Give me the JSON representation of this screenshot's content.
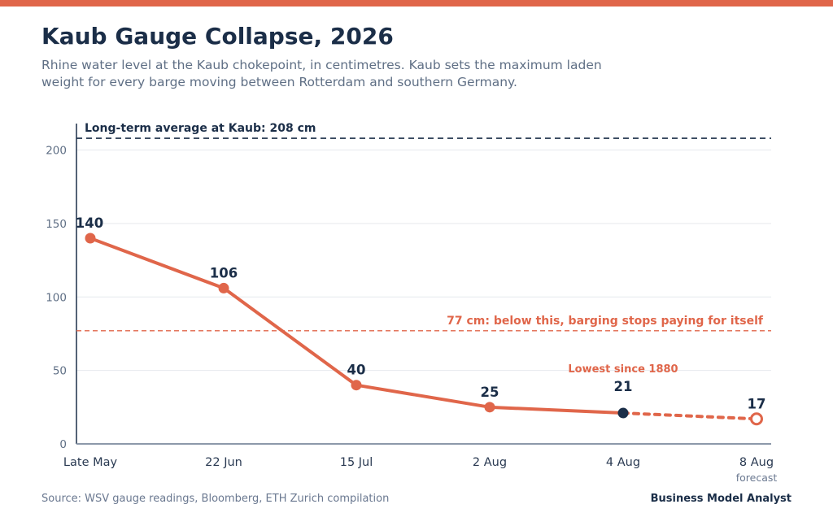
{
  "header": {
    "title": "Kaub Gauge Collapse, 2026",
    "subtitle": "Rhine water level at the Kaub chokepoint, in centimetres. Kaub sets the maximum laden weight for every barge moving between Rotterdam and southern Germany."
  },
  "footer": {
    "source": "Source: WSV gauge readings, Bloomberg, ETH Zurich compilation",
    "brand": "Business Model Analyst"
  },
  "colors": {
    "accent": "#e0664a",
    "dark": "#1b2e48",
    "muted": "#5f6f85"
  },
  "chart_data": {
    "type": "line",
    "categories": [
      "Late May",
      "22 Jun",
      "15 Jul",
      "2 Aug",
      "4 Aug",
      "8 Aug"
    ],
    "values": [
      140,
      106,
      40,
      25,
      21,
      17
    ],
    "data_labels": [
      "140",
      "106",
      "40",
      "25",
      "21",
      "17"
    ],
    "category_note": {
      "index": 5,
      "text": "forecast"
    },
    "forecast_from_index": 4,
    "highlight_index": 4,
    "yticks": [
      0,
      50,
      100,
      150,
      200
    ],
    "ylim": [
      0,
      218
    ],
    "grid": true,
    "reference_lines": [
      {
        "value": 208,
        "label": "Long-term average at Kaub: 208 cm",
        "color": "#1b2e48"
      },
      {
        "value": 77,
        "label": "77 cm: below this, barging stops paying for itself",
        "color": "#e0664a"
      }
    ],
    "annotation": {
      "index": 4,
      "text": "Lowest since 1880"
    }
  }
}
